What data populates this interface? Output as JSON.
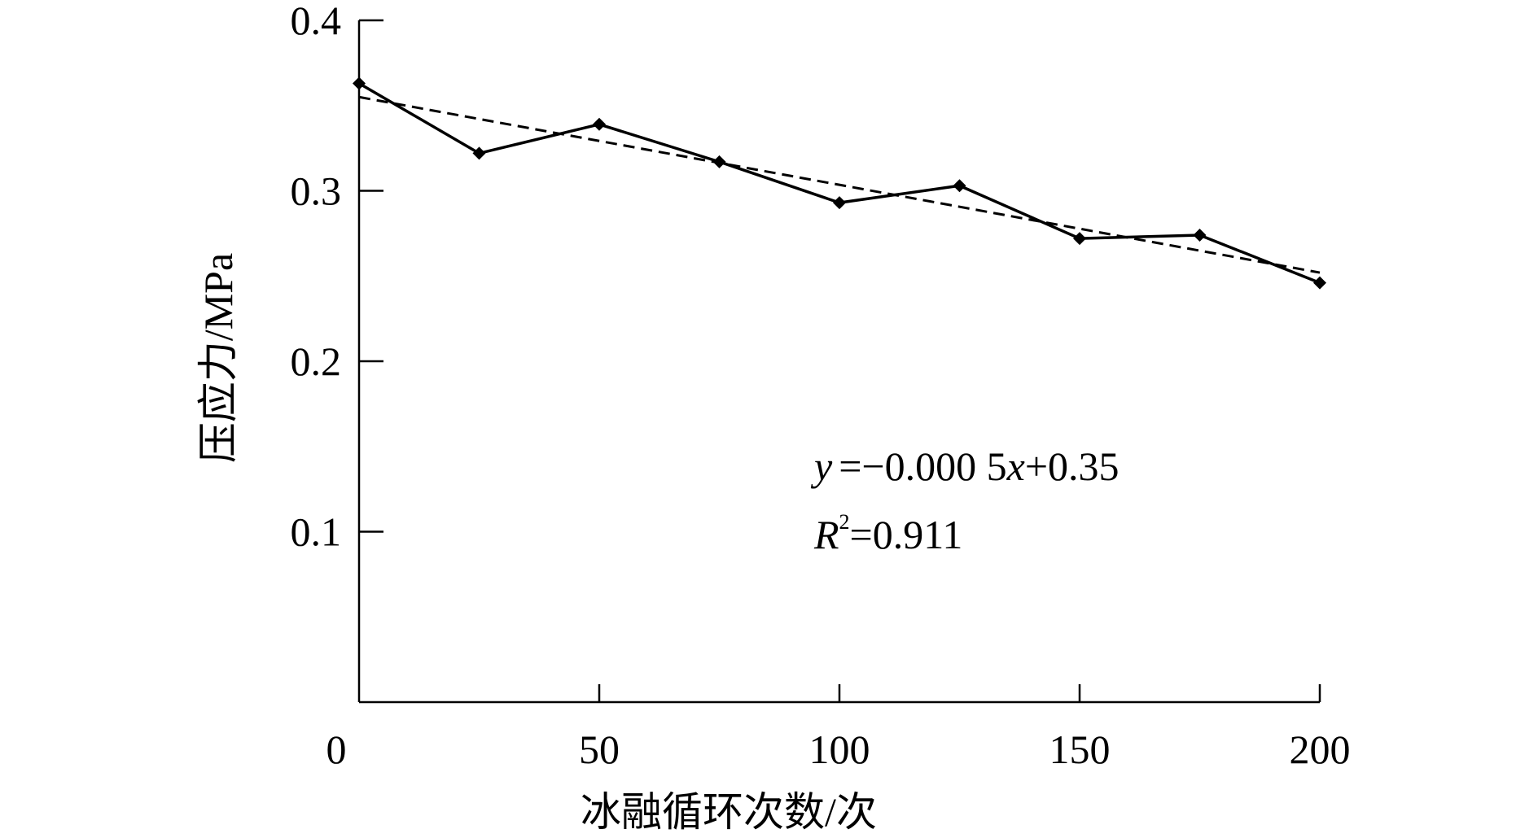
{
  "chart_data": {
    "type": "line",
    "xlabel": "冰融循环次数/次",
    "ylabel": "压应力/MPa",
    "xlim": [
      0,
      200
    ],
    "ylim": [
      0,
      0.4
    ],
    "x_ticks": [
      "0",
      "50",
      "100",
      "150",
      "200"
    ],
    "y_ticks": [
      "0.1",
      "0.2",
      "0.3",
      "0.4"
    ],
    "series": [
      {
        "style": "solid",
        "markers": true,
        "x": [
          0,
          25,
          50,
          75,
          100,
          125,
          150,
          175,
          200
        ],
        "y": [
          0.363,
          0.322,
          0.339,
          0.317,
          0.293,
          0.303,
          0.272,
          0.274,
          0.246
        ]
      }
    ],
    "trendline": {
      "style": "dashed",
      "x": [
        0,
        200
      ],
      "y": [
        0.355,
        0.252
      ]
    },
    "equation": {
      "lhs": "y",
      "rhs_a": "=−0.000 5",
      "x_var": "x",
      "rhs_b": "+0.35",
      "r_symbol": "R",
      "r_sup": "2",
      "r_value": "=0.911"
    },
    "grid": false
  }
}
